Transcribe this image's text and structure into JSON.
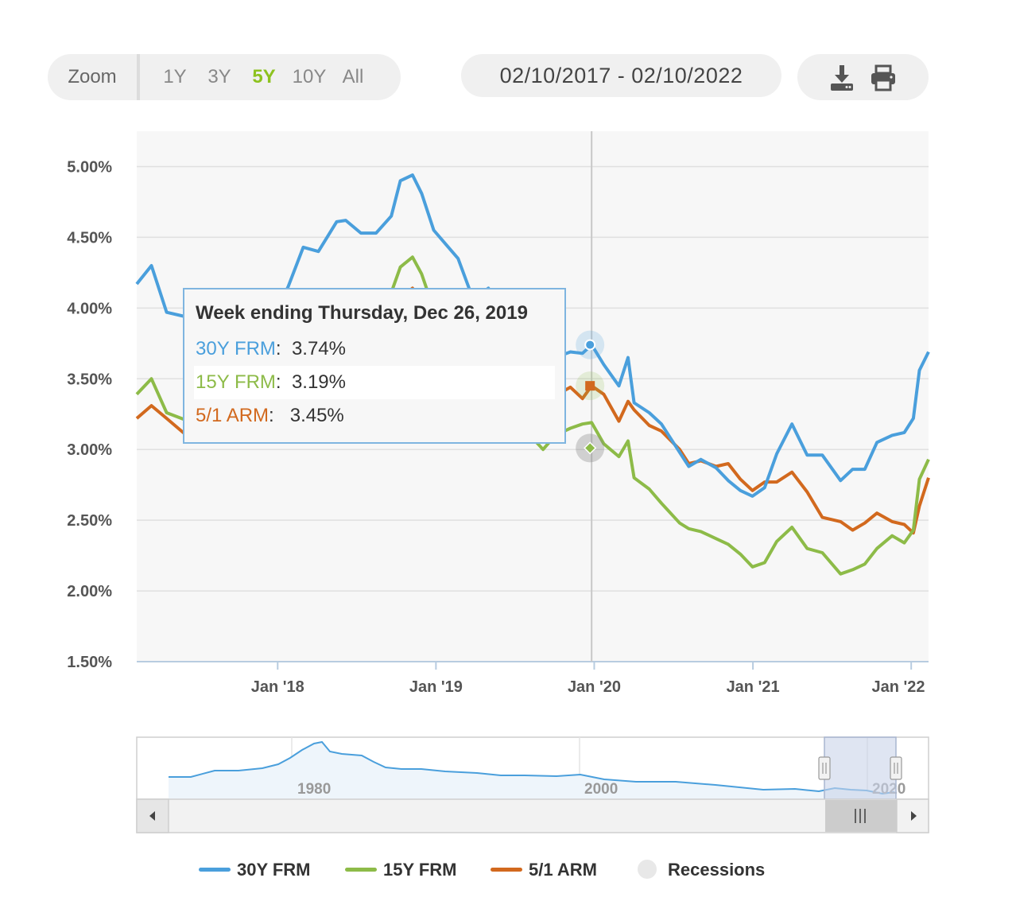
{
  "toolbar": {
    "zoom_label": "Zoom",
    "zoom_options": [
      "1Y",
      "3Y",
      "5Y",
      "10Y",
      "All"
    ],
    "active_zoom": "5Y",
    "date_range": "02/10/2017 - 02/10/2022",
    "download_icon": "download-icon",
    "print_icon": "print-icon"
  },
  "tooltip": {
    "title": "Week ending Thursday, Dec 26, 2019",
    "rows": [
      {
        "name": "30Y FRM",
        "value": "3.74%"
      },
      {
        "name": "15Y FRM",
        "value": "3.19%"
      },
      {
        "name": "5/1 ARM",
        "value": "3.45%"
      }
    ]
  },
  "legend": {
    "items": [
      "30Y FRM",
      "15Y FRM",
      "5/1 ARM",
      "Recessions"
    ]
  },
  "navigator": {
    "labels": [
      "1980",
      "2000",
      "2020"
    ]
  },
  "colors": {
    "frm30": "#4a9fdc",
    "frm15": "#8dbb48",
    "arm51": "#d2691e",
    "recession": "#e8e8e8",
    "active_zoom": "#8dc21f"
  },
  "chart_data": {
    "type": "line",
    "title": "",
    "xlabel": "",
    "ylabel": "",
    "x_start": "2017-02-10",
    "x_end": "2022-02-10",
    "ylim": [
      1.5,
      5.25
    ],
    "y_ticks": [
      "1.50%",
      "2.00%",
      "2.50%",
      "3.00%",
      "3.50%",
      "4.00%",
      "4.50%",
      "5.00%"
    ],
    "x_ticks": [
      {
        "date": "2018-01-01",
        "label": "Jan '18"
      },
      {
        "date": "2019-01-01",
        "label": "Jan '19"
      },
      {
        "date": "2020-01-01",
        "label": "Jan '20"
      },
      {
        "date": "2021-01-01",
        "label": "Jan '21"
      },
      {
        "date": "2022-01-01",
        "label": "Jan '22"
      }
    ],
    "crosshair_date": "2019-12-26",
    "grid": true,
    "legend_position": "bottom",
    "series": [
      {
        "name": "30Y FRM",
        "points": [
          [
            "2017-02-10",
            4.17
          ],
          [
            "2017-03-16",
            4.3
          ],
          [
            "2017-04-20",
            3.97
          ],
          [
            "2017-06-01",
            3.94
          ],
          [
            "2017-07-06",
            3.96
          ],
          [
            "2017-08-31",
            3.82
          ],
          [
            "2017-10-05",
            3.85
          ],
          [
            "2017-11-16",
            3.95
          ],
          [
            "2017-12-21",
            3.94
          ],
          [
            "2018-01-25",
            4.15
          ],
          [
            "2018-03-01",
            4.43
          ],
          [
            "2018-04-05",
            4.4
          ],
          [
            "2018-05-17",
            4.61
          ],
          [
            "2018-06-07",
            4.62
          ],
          [
            "2018-07-12",
            4.53
          ],
          [
            "2018-08-16",
            4.53
          ],
          [
            "2018-09-20",
            4.65
          ],
          [
            "2018-10-11",
            4.9
          ],
          [
            "2018-11-08",
            4.94
          ],
          [
            "2018-11-29",
            4.81
          ],
          [
            "2018-12-27",
            4.55
          ],
          [
            "2019-01-24",
            4.45
          ],
          [
            "2019-02-21",
            4.35
          ],
          [
            "2019-03-28",
            4.06
          ],
          [
            "2019-05-02",
            4.14
          ],
          [
            "2019-06-06",
            3.82
          ],
          [
            "2019-07-11",
            3.75
          ],
          [
            "2019-08-15",
            3.6
          ],
          [
            "2019-09-05",
            3.49
          ],
          [
            "2019-10-03",
            3.65
          ],
          [
            "2019-11-07",
            3.69
          ],
          [
            "2019-12-05",
            3.68
          ],
          [
            "2019-12-26",
            3.74
          ],
          [
            "2020-01-23",
            3.6
          ],
          [
            "2020-02-27",
            3.45
          ],
          [
            "2020-03-19",
            3.65
          ],
          [
            "2020-04-02",
            3.33
          ],
          [
            "2020-05-07",
            3.26
          ],
          [
            "2020-06-04",
            3.18
          ],
          [
            "2020-07-16",
            2.98
          ],
          [
            "2020-08-06",
            2.88
          ],
          [
            "2020-09-03",
            2.93
          ],
          [
            "2020-10-08",
            2.87
          ],
          [
            "2020-11-05",
            2.78
          ],
          [
            "2020-12-03",
            2.71
          ],
          [
            "2020-12-31",
            2.67
          ],
          [
            "2021-01-28",
            2.73
          ],
          [
            "2021-02-25",
            2.97
          ],
          [
            "2021-04-01",
            3.18
          ],
          [
            "2021-05-06",
            2.96
          ],
          [
            "2021-06-10",
            2.96
          ],
          [
            "2021-07-22",
            2.78
          ],
          [
            "2021-08-19",
            2.86
          ],
          [
            "2021-09-16",
            2.86
          ],
          [
            "2021-10-14",
            3.05
          ],
          [
            "2021-11-18",
            3.1
          ],
          [
            "2021-12-16",
            3.12
          ],
          [
            "2022-01-06",
            3.22
          ],
          [
            "2022-01-20",
            3.56
          ],
          [
            "2022-02-10",
            3.69
          ]
        ]
      },
      {
        "name": "15Y FRM",
        "points": [
          [
            "2017-02-10",
            3.39
          ],
          [
            "2017-03-16",
            3.5
          ],
          [
            "2017-04-20",
            3.26
          ],
          [
            "2017-06-01",
            3.21
          ],
          [
            "2017-07-06",
            3.22
          ],
          [
            "2017-08-31",
            3.08
          ],
          [
            "2017-10-05",
            3.11
          ],
          [
            "2017-11-16",
            3.31
          ],
          [
            "2017-12-21",
            3.38
          ],
          [
            "2018-01-25",
            3.62
          ],
          [
            "2018-03-01",
            3.9
          ],
          [
            "2018-04-05",
            3.87
          ],
          [
            "2018-05-17",
            4.08
          ],
          [
            "2018-06-07",
            4.1
          ],
          [
            "2018-07-12",
            4.0
          ],
          [
            "2018-08-16",
            4.01
          ],
          [
            "2018-09-20",
            4.11
          ],
          [
            "2018-10-11",
            4.29
          ],
          [
            "2018-11-08",
            4.36
          ],
          [
            "2018-11-29",
            4.24
          ],
          [
            "2018-12-27",
            3.99
          ],
          [
            "2019-01-24",
            3.88
          ],
          [
            "2019-02-21",
            3.78
          ],
          [
            "2019-03-28",
            3.49
          ],
          [
            "2019-05-02",
            3.6
          ],
          [
            "2019-06-06",
            3.28
          ],
          [
            "2019-07-11",
            3.22
          ],
          [
            "2019-08-15",
            3.07
          ],
          [
            "2019-09-05",
            3.0
          ],
          [
            "2019-10-03",
            3.1
          ],
          [
            "2019-11-07",
            3.15
          ],
          [
            "2019-12-05",
            3.18
          ],
          [
            "2019-12-26",
            3.19
          ],
          [
            "2020-01-23",
            3.04
          ],
          [
            "2020-02-27",
            2.95
          ],
          [
            "2020-03-19",
            3.06
          ],
          [
            "2020-04-02",
            2.8
          ],
          [
            "2020-05-07",
            2.72
          ],
          [
            "2020-06-04",
            2.62
          ],
          [
            "2020-07-16",
            2.48
          ],
          [
            "2020-08-06",
            2.44
          ],
          [
            "2020-09-03",
            2.42
          ],
          [
            "2020-10-08",
            2.37
          ],
          [
            "2020-11-05",
            2.33
          ],
          [
            "2020-12-03",
            2.26
          ],
          [
            "2020-12-31",
            2.17
          ],
          [
            "2021-01-28",
            2.2
          ],
          [
            "2021-02-25",
            2.35
          ],
          [
            "2021-04-01",
            2.45
          ],
          [
            "2021-05-06",
            2.3
          ],
          [
            "2021-06-10",
            2.27
          ],
          [
            "2021-07-22",
            2.12
          ],
          [
            "2021-08-19",
            2.15
          ],
          [
            "2021-09-16",
            2.19
          ],
          [
            "2021-10-14",
            2.3
          ],
          [
            "2021-11-18",
            2.39
          ],
          [
            "2021-12-16",
            2.34
          ],
          [
            "2022-01-06",
            2.43
          ],
          [
            "2022-01-20",
            2.79
          ],
          [
            "2022-02-10",
            2.93
          ]
        ]
      },
      {
        "name": "5/1 ARM",
        "points": [
          [
            "2017-02-10",
            3.22
          ],
          [
            "2017-03-16",
            3.31
          ],
          [
            "2017-04-20",
            3.22
          ],
          [
            "2017-06-01",
            3.11
          ],
          [
            "2017-07-06",
            3.13
          ],
          [
            "2017-08-31",
            3.15
          ],
          [
            "2017-10-05",
            3.16
          ],
          [
            "2017-11-16",
            3.2
          ],
          [
            "2017-12-21",
            3.36
          ],
          [
            "2018-01-25",
            3.45
          ],
          [
            "2018-03-01",
            3.62
          ],
          [
            "2018-04-05",
            3.67
          ],
          [
            "2018-05-17",
            3.82
          ],
          [
            "2018-06-07",
            3.83
          ],
          [
            "2018-07-12",
            3.87
          ],
          [
            "2018-08-16",
            3.88
          ],
          [
            "2018-09-20",
            3.97
          ],
          [
            "2018-10-11",
            4.07
          ],
          [
            "2018-11-08",
            4.14
          ],
          [
            "2018-11-29",
            4.05
          ],
          [
            "2018-12-27",
            3.98
          ],
          [
            "2019-01-24",
            3.9
          ],
          [
            "2019-02-21",
            3.85
          ],
          [
            "2019-03-28",
            3.69
          ],
          [
            "2019-05-02",
            3.68
          ],
          [
            "2019-06-06",
            3.48
          ],
          [
            "2019-07-11",
            3.46
          ],
          [
            "2019-08-15",
            3.33
          ],
          [
            "2019-09-05",
            3.32
          ],
          [
            "2019-10-03",
            3.38
          ],
          [
            "2019-11-07",
            3.44
          ],
          [
            "2019-12-05",
            3.36
          ],
          [
            "2019-12-26",
            3.45
          ],
          [
            "2020-01-23",
            3.39
          ],
          [
            "2020-02-27",
            3.2
          ],
          [
            "2020-03-19",
            3.34
          ],
          [
            "2020-04-02",
            3.28
          ],
          [
            "2020-05-07",
            3.17
          ],
          [
            "2020-06-04",
            3.13
          ],
          [
            "2020-07-16",
            3.0
          ],
          [
            "2020-08-06",
            2.9
          ],
          [
            "2020-09-03",
            2.92
          ],
          [
            "2020-10-08",
            2.88
          ],
          [
            "2020-11-05",
            2.9
          ],
          [
            "2020-12-03",
            2.79
          ],
          [
            "2020-12-31",
            2.71
          ],
          [
            "2021-01-28",
            2.77
          ],
          [
            "2021-02-25",
            2.77
          ],
          [
            "2021-04-01",
            2.84
          ],
          [
            "2021-05-06",
            2.7
          ],
          [
            "2021-06-10",
            2.52
          ],
          [
            "2021-07-22",
            2.49
          ],
          [
            "2021-08-19",
            2.43
          ],
          [
            "2021-09-16",
            2.48
          ],
          [
            "2021-10-14",
            2.55
          ],
          [
            "2021-11-18",
            2.49
          ],
          [
            "2021-12-16",
            2.47
          ],
          [
            "2022-01-06",
            2.41
          ],
          [
            "2022-01-20",
            2.6
          ],
          [
            "2022-02-10",
            2.8
          ]
        ]
      }
    ]
  }
}
